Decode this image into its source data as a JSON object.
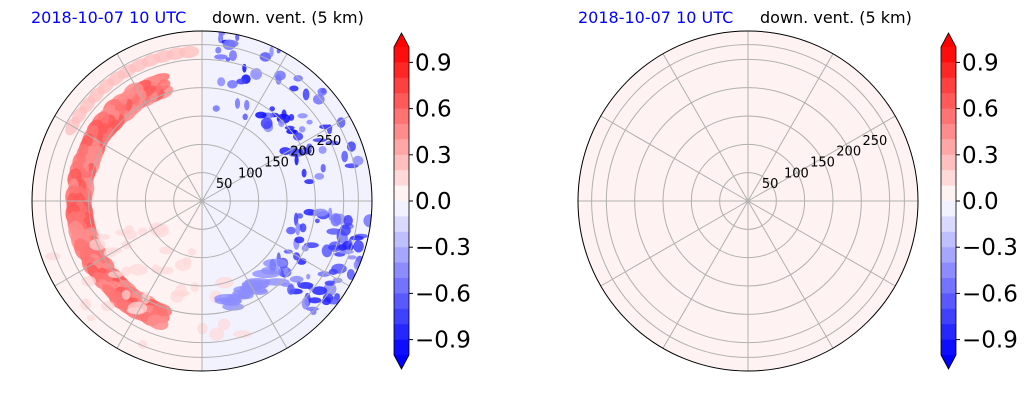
{
  "chart_data": [
    {
      "type": "polar-contour",
      "time_label": "2018-10-07 10 UTC",
      "variable_label": "down. vent. (5 km)",
      "radial_ticks": [
        50,
        100,
        150,
        200,
        250
      ],
      "radial_max": 300,
      "azimuth_gridlines_deg": [
        0,
        30,
        60,
        90,
        120,
        150,
        180,
        210,
        240,
        270,
        300,
        330
      ],
      "colorbar": {
        "cmap": "bwr",
        "range": [
          -1.0,
          1.0
        ],
        "levels": 20,
        "tick_labels": [
          "0.9",
          "0.6",
          "0.3",
          "0.0",
          "−0.3",
          "−0.6",
          "−0.9"
        ],
        "tick_values": [
          0.9,
          0.6,
          0.3,
          0.0,
          -0.3,
          -0.6,
          -0.9
        ],
        "extend": "both"
      },
      "field_description_fields": {
        "background_value": 0.0,
        "features": [
          {
            "region": "west arc",
            "value": 0.55
          },
          {
            "region": "north-west arc",
            "value": 0.25
          },
          {
            "region": "north-east patches",
            "value": -0.7
          },
          {
            "region": "east patches",
            "value": -0.9
          },
          {
            "region": "south band",
            "value": -0.4
          },
          {
            "region": "south-west scattered",
            "value": 0.2
          }
        ]
      }
    },
    {
      "type": "polar-contour",
      "time_label": "2018-10-07 10 UTC",
      "variable_label": "down. vent. (5 km)",
      "radial_ticks": [
        50,
        100,
        150,
        200,
        250
      ],
      "radial_max": 300,
      "azimuth_gridlines_deg": [
        0,
        30,
        60,
        90,
        120,
        150,
        180,
        210,
        240,
        270,
        300,
        330
      ],
      "colorbar": {
        "cmap": "bwr",
        "range": [
          -1.0,
          1.0
        ],
        "levels": 20,
        "tick_labels": [
          "0.9",
          "0.6",
          "0.3",
          "0.0",
          "−0.3",
          "−0.6",
          "−0.9"
        ],
        "tick_values": [
          0.9,
          0.6,
          0.3,
          0.0,
          -0.3,
          -0.6,
          -0.9
        ],
        "extend": "both"
      },
      "field_description_fields": {
        "background_value": 0.03,
        "features": []
      }
    }
  ]
}
